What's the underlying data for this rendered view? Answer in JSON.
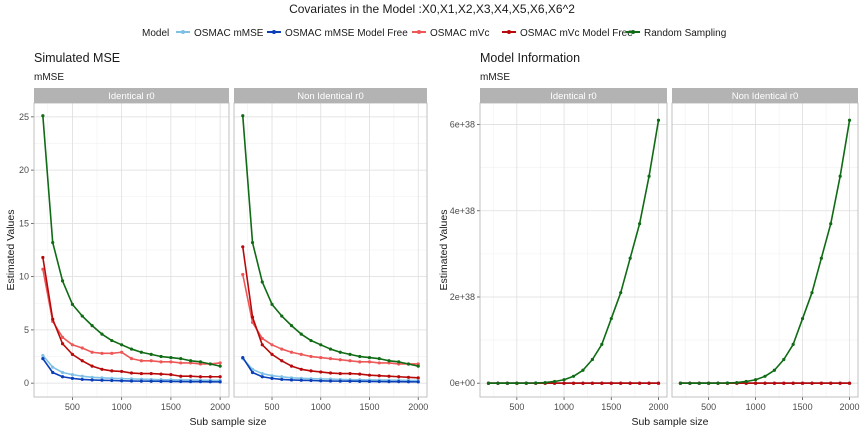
{
  "figure": {
    "title": "Covariates in the Model :X0,X1,X2,X3,X4,X5,X6,X6^2",
    "legend_title": "Model"
  },
  "legend": [
    {
      "name": "OSMAC mMSE",
      "color": "#7FC1E6"
    },
    {
      "name": "OSMAC mMSE Model Free",
      "color": "#0A3FB8"
    },
    {
      "name": "OSMAC mVc",
      "color": "#EE5757"
    },
    {
      "name": "OSMAC mVc Model Free",
      "color": "#B80A0A"
    },
    {
      "name": "Random Sampling",
      "color": "#0F6B14"
    }
  ],
  "chart_data": [
    {
      "type": "line",
      "title": "Simulated MSE",
      "subtitle": "mMSE",
      "xlabel": "Sub sample size",
      "ylabel": "Estimated Values",
      "xlim": [
        110,
        2090
      ],
      "ylim": [
        -1.3,
        26.3
      ],
      "xticks": [
        500,
        1000,
        1500,
        2000
      ],
      "yticks": [
        0,
        5,
        10,
        15,
        20,
        25
      ],
      "ytick_labels": [
        "0",
        "5",
        "10",
        "15",
        "20",
        "25"
      ],
      "grid": true,
      "legend_position": "top",
      "x": [
        200,
        300,
        400,
        500,
        600,
        700,
        800,
        900,
        1000,
        1100,
        1200,
        1300,
        1400,
        1500,
        1600,
        1700,
        1800,
        1900,
        2000
      ],
      "panels": [
        {
          "strip": "Identical r0",
          "series": [
            {
              "name": "OSMAC mMSE",
              "values": [
                2.6,
                1.5,
                1.0,
                0.8,
                0.65,
                0.55,
                0.5,
                0.45,
                0.42,
                0.4,
                0.37,
                0.35,
                0.33,
                0.32,
                0.3,
                0.29,
                0.28,
                0.27,
                0.26
              ]
            },
            {
              "name": "OSMAC mMSE Model Free",
              "values": [
                2.3,
                1.0,
                0.6,
                0.45,
                0.35,
                0.3,
                0.27,
                0.25,
                0.22,
                0.2,
                0.19,
                0.18,
                0.17,
                0.16,
                0.15,
                0.14,
                0.14,
                0.13,
                0.12
              ]
            },
            {
              "name": "OSMAC mVc",
              "values": [
                10.7,
                5.8,
                4.3,
                3.6,
                3.3,
                2.9,
                2.8,
                2.8,
                2.9,
                2.3,
                2.1,
                2.1,
                2.0,
                2.0,
                1.9,
                1.9,
                1.8,
                1.8,
                1.9
              ]
            },
            {
              "name": "OSMAC mVc Model Free",
              "values": [
                11.8,
                6.0,
                3.7,
                2.7,
                2.1,
                1.6,
                1.3,
                1.15,
                1.1,
                0.95,
                0.9,
                0.9,
                0.85,
                0.8,
                0.65,
                0.65,
                0.6,
                0.6,
                0.6
              ]
            },
            {
              "name": "Random Sampling",
              "values": [
                25.1,
                13.2,
                9.6,
                7.4,
                6.3,
                5.4,
                4.6,
                4.0,
                3.6,
                3.2,
                2.9,
                2.7,
                2.5,
                2.4,
                2.3,
                2.1,
                2.0,
                1.8,
                1.6
              ]
            }
          ]
        },
        {
          "strip": "Non Identical r0",
          "series": [
            {
              "name": "OSMAC mMSE",
              "values": [
                2.3,
                1.3,
                0.9,
                0.7,
                0.6,
                0.5,
                0.45,
                0.42,
                0.4,
                0.38,
                0.35,
                0.33,
                0.32,
                0.3,
                0.29,
                0.28,
                0.27,
                0.26,
                0.25
              ]
            },
            {
              "name": "OSMAC mMSE Model Free",
              "values": [
                2.4,
                1.0,
                0.6,
                0.45,
                0.35,
                0.3,
                0.27,
                0.25,
                0.22,
                0.2,
                0.19,
                0.18,
                0.17,
                0.16,
                0.15,
                0.14,
                0.14,
                0.13,
                0.12
              ]
            },
            {
              "name": "OSMAC mVc",
              "values": [
                10.2,
                5.7,
                4.2,
                3.6,
                3.2,
                2.9,
                2.7,
                2.5,
                2.4,
                2.3,
                2.2,
                2.1,
                2.0,
                2.0,
                1.9,
                1.9,
                1.8,
                1.8,
                1.8
              ]
            },
            {
              "name": "OSMAC mVc Model Free",
              "values": [
                12.8,
                6.2,
                3.6,
                2.7,
                2.1,
                1.6,
                1.3,
                1.15,
                1.05,
                0.95,
                0.9,
                0.9,
                0.85,
                0.75,
                0.7,
                0.65,
                0.6,
                0.55,
                0.5
              ]
            },
            {
              "name": "Random Sampling",
              "values": [
                25.1,
                13.2,
                9.5,
                7.4,
                6.3,
                5.4,
                4.6,
                4.0,
                3.6,
                3.2,
                2.9,
                2.7,
                2.5,
                2.4,
                2.3,
                2.1,
                2.0,
                1.8,
                1.6
              ]
            }
          ]
        }
      ]
    },
    {
      "type": "line",
      "title": "Model Information",
      "subtitle": "mMSE",
      "xlabel": "Sub sample size",
      "ylabel": "Estimated Values",
      "xlim": [
        110,
        2090
      ],
      "ylim": [
        -3.2e+37,
        6.5e+38
      ],
      "xticks": [
        500,
        1000,
        1500,
        2000
      ],
      "yticks": [
        0,
        2e+38,
        4e+38,
        6e+38
      ],
      "ytick_labels": [
        "0e+00",
        "2e+38",
        "4e+38",
        "6e+38"
      ],
      "grid": true,
      "legend_position": "top",
      "x": [
        200,
        300,
        400,
        500,
        600,
        700,
        800,
        900,
        1000,
        1100,
        1200,
        1300,
        1400,
        1500,
        1600,
        1700,
        1800,
        1900,
        2000
      ],
      "panels": [
        {
          "strip": "Identical r0",
          "series": [
            {
              "name": "OSMAC mMSE",
              "values": [
                0,
                0,
                0,
                0,
                0,
                0,
                0,
                0,
                0,
                0,
                0,
                0,
                0,
                0,
                0,
                0,
                0,
                0,
                0
              ]
            },
            {
              "name": "OSMAC mMSE Model Free",
              "values": [
                0,
                0,
                0,
                0,
                0,
                0,
                0,
                0,
                0,
                0,
                0,
                0,
                0,
                0,
                0,
                0,
                0,
                0,
                0
              ]
            },
            {
              "name": "OSMAC mVc",
              "values": [
                0,
                0,
                0,
                0,
                0,
                0,
                0,
                0,
                0,
                0,
                0,
                0,
                0,
                0,
                0,
                0,
                0,
                0,
                0
              ]
            },
            {
              "name": "OSMAC mVc Model Free",
              "values": [
                0,
                0,
                0,
                0,
                0,
                0,
                0,
                0,
                0,
                0,
                0,
                0,
                0,
                0,
                0,
                0,
                0,
                0,
                0
              ]
            },
            {
              "name": "Random Sampling",
              "values": [
                0,
                0,
                0,
                0,
                1e+35,
                5e+35,
                1.5e+36,
                4e+36,
                8e+36,
                1.6e+37,
                3e+37,
                5.5e+37,
                9e+37,
                1.5e+38,
                2.1e+38,
                2.9e+38,
                3.7e+38,
                4.8e+38,
                6.1e+38
              ]
            }
          ]
        },
        {
          "strip": "Non Identical r0",
          "series": [
            {
              "name": "OSMAC mMSE",
              "values": [
                0,
                0,
                0,
                0,
                0,
                0,
                0,
                0,
                0,
                0,
                0,
                0,
                0,
                0,
                0,
                0,
                0,
                0,
                0
              ]
            },
            {
              "name": "OSMAC mMSE Model Free",
              "values": [
                0,
                0,
                0,
                0,
                0,
                0,
                0,
                0,
                0,
                0,
                0,
                0,
                0,
                0,
                0,
                0,
                0,
                0,
                0
              ]
            },
            {
              "name": "OSMAC mVc",
              "values": [
                0,
                0,
                0,
                0,
                0,
                0,
                0,
                0,
                0,
                0,
                0,
                0,
                0,
                0,
                0,
                0,
                0,
                0,
                0
              ]
            },
            {
              "name": "OSMAC mVc Model Free",
              "values": [
                0,
                0,
                0,
                0,
                0,
                0,
                0,
                0,
                0,
                0,
                0,
                0,
                0,
                0,
                0,
                0,
                0,
                0,
                0
              ]
            },
            {
              "name": "Random Sampling",
              "values": [
                0,
                0,
                0,
                0,
                1e+35,
                5e+35,
                1.5e+36,
                4e+36,
                8e+36,
                1.6e+37,
                3e+37,
                5.5e+37,
                9e+37,
                1.5e+38,
                2.1e+38,
                2.9e+38,
                3.7e+38,
                4.8e+38,
                6.1e+38
              ]
            }
          ]
        }
      ]
    }
  ]
}
